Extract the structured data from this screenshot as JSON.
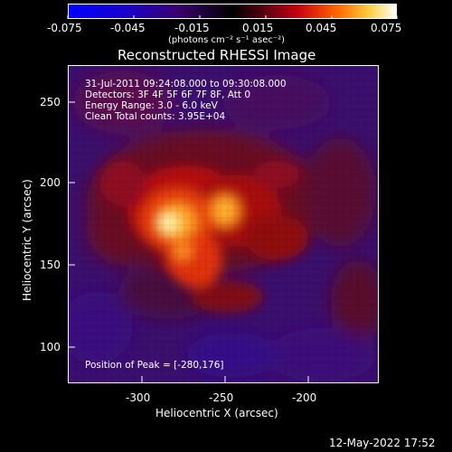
{
  "colorbar": {
    "ticks": [
      "-0.075",
      "-0.045",
      "-0.015",
      "0.015",
      "0.045",
      "0.075"
    ],
    "unit_label": "(photons cm⁻² s⁻¹ asec⁻²)"
  },
  "plot": {
    "title": "Reconstructed RHESSI Image",
    "info_lines": [
      "31-Jul-2011 09:24:08.000 to 09:30:08.000",
      "Detectors: 3F 4F 5F 6F 7F 8F, Att 0",
      "Energy Range: 3.0 - 6.0 keV",
      "Clean     Total counts: 3.95E+04"
    ],
    "peak_label": "Position of Peak = [-280,176]",
    "xlabel": "Heliocentric X (arcsec)",
    "ylabel": "Heliocentric Y (arcsec)",
    "xticks": [
      "-300",
      "-250",
      "-200"
    ],
    "yticks": [
      "250",
      "200",
      "150",
      "100"
    ],
    "timestamp": "12-May-2022 17:52"
  }
}
